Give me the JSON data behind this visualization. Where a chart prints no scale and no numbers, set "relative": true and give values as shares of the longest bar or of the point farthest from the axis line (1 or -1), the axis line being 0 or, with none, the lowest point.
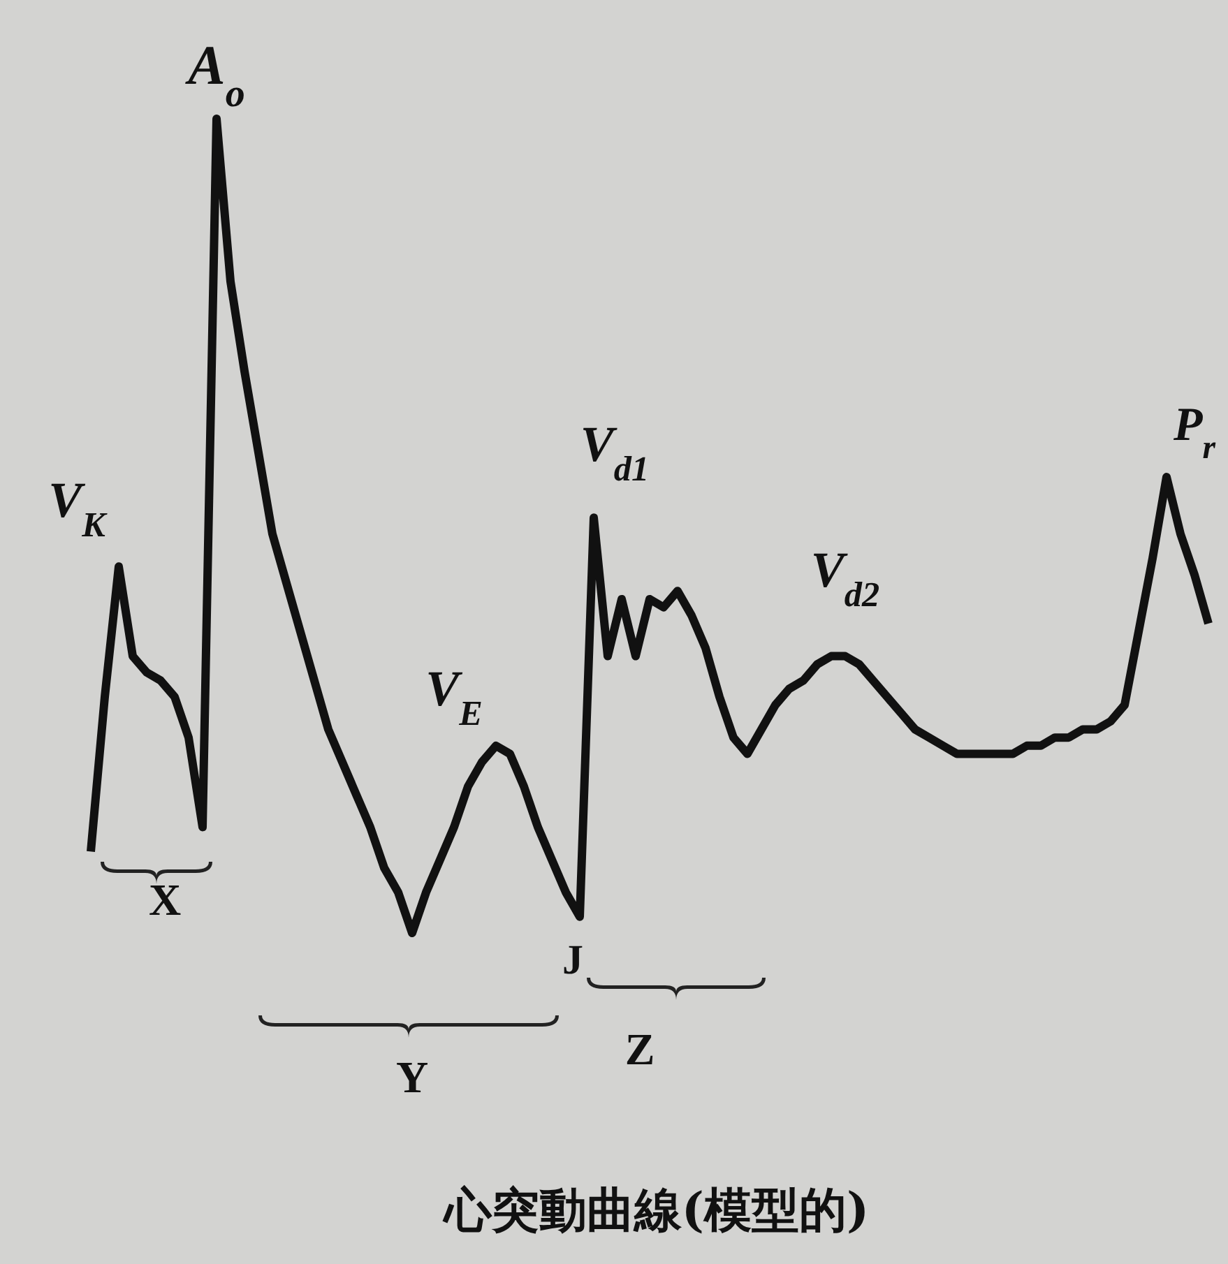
{
  "chart_data": {
    "type": "line",
    "relative": true,
    "title": "心突動曲線(模型的)",
    "color": "#111111",
    "marker": "none",
    "line_style": "solid",
    "categories": [
      null,
      null,
      null,
      null,
      null,
      null,
      null,
      null,
      null,
      null,
      null,
      null,
      null,
      null,
      null,
      null,
      null,
      null,
      null,
      null,
      null,
      null,
      null,
      null,
      null,
      null,
      null,
      null,
      null,
      null,
      null,
      null,
      null,
      null,
      null,
      null,
      null,
      null,
      null,
      null,
      null,
      null,
      null,
      null,
      null,
      null,
      null,
      null,
      null,
      null,
      null,
      null,
      null,
      null,
      null,
      null,
      null,
      null,
      null,
      null,
      null,
      null,
      null,
      null,
      null,
      null,
      null,
      null,
      null,
      null,
      null,
      null,
      null,
      null,
      null,
      null,
      null,
      null,
      null,
      null,
      null
    ],
    "values": [
      0.1,
      0.29,
      0.45,
      0.34,
      0.32,
      0.31,
      0.29,
      0.24,
      0.13,
      1.0,
      0.8,
      0.69,
      0.59,
      0.49,
      0.43,
      0.37,
      0.31,
      0.25,
      0.21,
      0.17,
      0.13,
      0.08,
      0.05,
      0,
      0.05,
      0.09,
      0.13,
      0.18,
      0.21,
      0.23,
      0.22,
      0.18,
      0.13,
      0.09,
      0.05,
      0.02,
      0.51,
      0.34,
      0.41,
      0.34,
      0.41,
      0.4,
      0.42,
      0.39,
      0.35,
      0.29,
      0.24,
      0.22,
      0.25,
      0.28,
      0.3,
      0.31,
      0.33,
      0.34,
      0.34,
      0.33,
      0.31,
      0.29,
      0.27,
      0.25,
      0.24,
      0.23,
      0.22,
      0.22,
      0.22,
      0.22,
      0.22,
      0.23,
      0.23,
      0.24,
      0.24,
      0.25,
      0.25,
      0.26,
      0.28,
      0.37,
      0.46,
      0.56,
      0.49,
      0.44,
      0.38
    ],
    "annotations": [
      "A$_{o}$",
      "V$_{K}$",
      "V$_{E}$",
      "V$_{d1}$",
      "V$_{d2}$",
      "P$_{r}$",
      "X",
      "Y",
      "Z",
      "J"
    ]
  }
}
